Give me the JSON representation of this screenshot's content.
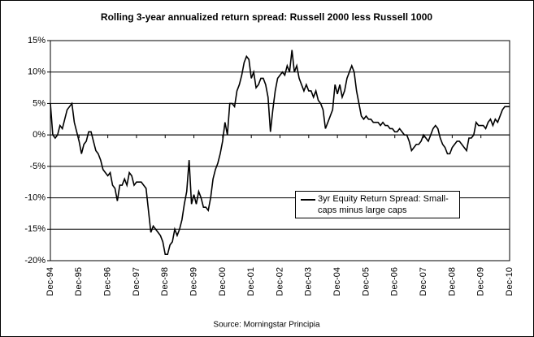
{
  "chart_data": {
    "type": "line",
    "title": "Rolling 3-year annualized return spread: Russell 2000 less Russell 1000",
    "source": "Source: Morningstar Principia",
    "categories": [
      "Dec-94",
      null,
      null,
      null,
      null,
      null,
      null,
      null,
      null,
      null,
      null,
      null,
      "Dec-95",
      null,
      null,
      null,
      null,
      null,
      null,
      null,
      null,
      null,
      null,
      null,
      "Dec-96",
      null,
      null,
      null,
      null,
      null,
      null,
      null,
      null,
      null,
      null,
      null,
      "Dec-97",
      null,
      null,
      null,
      null,
      null,
      null,
      null,
      null,
      null,
      null,
      null,
      "Dec-98",
      null,
      null,
      null,
      null,
      null,
      null,
      null,
      null,
      null,
      null,
      null,
      "Dec-99",
      null,
      null,
      null,
      null,
      null,
      null,
      null,
      null,
      null,
      null,
      null,
      "Dec-00",
      null,
      null,
      null,
      null,
      null,
      null,
      null,
      null,
      null,
      null,
      null,
      "Dec-01",
      null,
      null,
      null,
      null,
      null,
      null,
      null,
      null,
      null,
      null,
      null,
      "Dec-02",
      null,
      null,
      null,
      null,
      null,
      null,
      null,
      null,
      null,
      null,
      null,
      "Dec-03",
      null,
      null,
      null,
      null,
      null,
      null,
      null,
      null,
      null,
      null,
      null,
      "Dec-04",
      null,
      null,
      null,
      null,
      null,
      null,
      null,
      null,
      null,
      null,
      null,
      "Dec-05",
      null,
      null,
      null,
      null,
      null,
      null,
      null,
      null,
      null,
      null,
      null,
      "Dec-06",
      null,
      null,
      null,
      null,
      null,
      null,
      null,
      null,
      null,
      null,
      null,
      "Dec-07",
      null,
      null,
      null,
      null,
      null,
      null,
      null,
      null,
      null,
      null,
      null,
      "Dec-08",
      null,
      null,
      null,
      null,
      null,
      null,
      null,
      null,
      null,
      null,
      null,
      "Dec-09",
      null,
      null,
      null,
      null,
      null,
      null,
      null,
      null,
      null,
      null,
      null,
      "Dec-10"
    ],
    "series": [
      {
        "name": "3yr Equity Return Spread: Small-caps minus large caps",
        "color": "#000000",
        "values": [
          5,
          0,
          -0.5,
          0,
          1.5,
          1,
          2.5,
          4,
          4.5,
          5,
          2,
          0.5,
          -1,
          -3,
          -1.5,
          -1,
          0.5,
          0.5,
          -1,
          -2.5,
          -3,
          -4,
          -5.5,
          -6,
          -6.5,
          -6,
          -8,
          -8.5,
          -10.5,
          -8,
          -8,
          -7,
          -8,
          -6,
          -6.5,
          -8,
          -7.5,
          -7.5,
          -7.5,
          -8,
          -8.5,
          -12,
          -15.5,
          -14.5,
          -15,
          -15.5,
          -16,
          -17,
          -19,
          -19,
          -17.5,
          -17,
          -15,
          -16,
          -15,
          -13.5,
          -11,
          -9,
          -4,
          -11,
          -9.5,
          -11,
          -9,
          -10,
          -11.5,
          -11.5,
          -12,
          -10,
          -7,
          -5.5,
          -4.5,
          -3,
          -1,
          2,
          0,
          5,
          5,
          4.5,
          7,
          8,
          9.5,
          11.5,
          12.5,
          12,
          9,
          10,
          7.5,
          8,
          9,
          9,
          8,
          6,
          0.5,
          4,
          7,
          9,
          9.5,
          10,
          9.5,
          11,
          10,
          13.5,
          10,
          11,
          9,
          8,
          7,
          8,
          7,
          7,
          6,
          7,
          5.5,
          5,
          4,
          1,
          2,
          3,
          4,
          8,
          6.5,
          8,
          6,
          7,
          9,
          10,
          11,
          10,
          7,
          5,
          3,
          2.5,
          3,
          2.5,
          2.5,
          2,
          2,
          2,
          1.5,
          2,
          1.5,
          1.5,
          1,
          1,
          0.5,
          0.5,
          1,
          0.5,
          0,
          0,
          -1,
          -2.5,
          -2,
          -1.5,
          -1.5,
          -1,
          0,
          -0.5,
          -1,
          0,
          1,
          1.5,
          1,
          -0.5,
          -1.5,
          -2,
          -3,
          -3,
          -2,
          -1.5,
          -1,
          -1,
          -1.5,
          -2,
          -2.5,
          -0.5,
          -0.5,
          0,
          2,
          1.5,
          1.5,
          1.5,
          1,
          2,
          2.5,
          1.5,
          2.5,
          2,
          3,
          4,
          4.5,
          4.5,
          4.5
        ]
      }
    ],
    "ylim": [
      -20,
      15
    ],
    "yticks": [
      {
        "value": 15,
        "label": "15%"
      },
      {
        "value": 10,
        "label": "10%"
      },
      {
        "value": 5,
        "label": "5%"
      },
      {
        "value": 0,
        "label": "0%"
      },
      {
        "value": -5,
        "label": "-5%"
      },
      {
        "value": -10,
        "label": "-10%"
      },
      {
        "value": -15,
        "label": "-15%"
      },
      {
        "value": -20,
        "label": "-20%"
      }
    ],
    "grid": true
  }
}
